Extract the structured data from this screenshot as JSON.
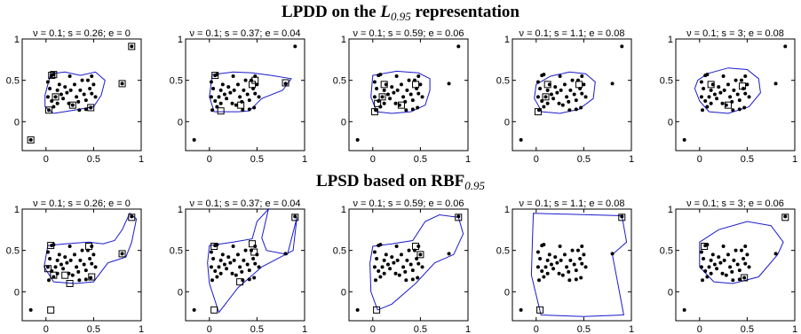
{
  "figure": {
    "rows": [
      {
        "title_prefix": "LPDD on the ",
        "title_math": "L",
        "title_sub": "0.95",
        "title_suffix": " representation"
      },
      {
        "title_prefix": "LPSD based on RBF",
        "title_math": "",
        "title_sub": "0.95",
        "title_suffix": ""
      }
    ]
  },
  "chart_data": [
    {
      "type": "scatter",
      "title": "ν = 0.1;  s = 0.26;  e = 0",
      "xlim": [
        -0.25,
        1
      ],
      "ylim": [
        -0.35,
        1
      ],
      "xticks": [
        {
          "v": 0,
          "l": "0"
        },
        {
          "v": 0.5,
          "l": "0.5"
        },
        {
          "v": 1,
          "l": "1"
        }
      ],
      "yticks": [
        {
          "v": 0,
          "l": "0"
        },
        {
          "v": 0.5,
          "l": "0.5"
        },
        {
          "v": 1,
          "l": "1"
        }
      ],
      "boundary": [
        [
          0.05,
          0.58
        ],
        [
          0.2,
          0.6
        ],
        [
          0.36,
          0.56
        ],
        [
          0.52,
          0.6
        ],
        [
          0.62,
          0.5
        ],
        [
          0.58,
          0.32
        ],
        [
          0.5,
          0.18
        ],
        [
          0.3,
          0.14
        ],
        [
          0.08,
          0.1
        ],
        [
          -0.01,
          0.18
        ],
        [
          -0.01,
          0.32
        ],
        [
          0.02,
          0.45
        ]
      ],
      "support_vectors": [
        [
          0.06,
          0.56
        ],
        [
          0.08,
          0.57
        ],
        [
          0.9,
          0.91
        ],
        [
          0.8,
          0.46
        ],
        [
          0.1,
          0.3
        ],
        [
          0.03,
          0.14
        ],
        [
          0.47,
          0.17
        ],
        [
          0.28,
          0.2
        ],
        [
          -0.16,
          -0.22
        ]
      ]
    },
    {
      "type": "scatter",
      "title": "ν = 0.1;  s = 0.37;  e = 0.04",
      "xlim": [
        -0.25,
        1
      ],
      "ylim": [
        -0.35,
        1
      ],
      "xticks": [
        {
          "v": 0,
          "l": "0"
        },
        {
          "v": 0.5,
          "l": "0.5"
        },
        {
          "v": 1,
          "l": "1"
        }
      ],
      "yticks": [
        {
          "v": 0,
          "l": "0"
        },
        {
          "v": 0.5,
          "l": "0.5"
        },
        {
          "v": 1,
          "l": "1"
        }
      ],
      "boundary": [
        [
          0.03,
          0.57
        ],
        [
          0.25,
          0.6
        ],
        [
          0.45,
          0.59
        ],
        [
          0.65,
          0.56
        ],
        [
          0.86,
          0.52
        ],
        [
          0.77,
          0.38
        ],
        [
          0.55,
          0.28
        ],
        [
          0.42,
          0.13
        ],
        [
          0.3,
          0.12
        ],
        [
          0.05,
          0.12
        ],
        [
          0.0,
          0.3
        ]
      ],
      "support_vectors": [
        [
          0.06,
          0.56
        ],
        [
          0.8,
          0.47
        ],
        [
          0.45,
          0.45
        ],
        [
          0.48,
          0.5
        ],
        [
          0.12,
          0.13
        ],
        [
          0.33,
          0.2
        ]
      ]
    },
    {
      "type": "scatter",
      "title": "ν = 0.1;  s = 0.59;  e = 0.06",
      "xlim": [
        -0.25,
        1
      ],
      "ylim": [
        -0.35,
        1
      ],
      "xticks": [
        {
          "v": 0,
          "l": "0"
        },
        {
          "v": 0.5,
          "l": "0.5"
        },
        {
          "v": 1,
          "l": "1"
        }
      ],
      "yticks": [
        {
          "v": 0,
          "l": "0"
        },
        {
          "v": 0.5,
          "l": "0.5"
        },
        {
          "v": 1,
          "l": "1"
        }
      ],
      "boundary": [
        [
          0.0,
          0.56
        ],
        [
          0.25,
          0.61
        ],
        [
          0.48,
          0.59
        ],
        [
          0.6,
          0.52
        ],
        [
          0.6,
          0.38
        ],
        [
          0.55,
          0.2
        ],
        [
          0.4,
          0.12
        ],
        [
          0.2,
          0.1
        ],
        [
          0.04,
          0.12
        ],
        [
          -0.02,
          0.3
        ]
      ],
      "support_vectors": [
        [
          0.12,
          0.45
        ],
        [
          0.45,
          0.45
        ],
        [
          0.1,
          0.3
        ],
        [
          0.05,
          0.22
        ],
        [
          0.02,
          0.12
        ],
        [
          0.3,
          0.2
        ]
      ]
    },
    {
      "type": "scatter",
      "title": "ν = 0.1;  s = 1.1;  e = 0.08",
      "xlim": [
        -0.25,
        1
      ],
      "ylim": [
        -0.35,
        1
      ],
      "xticks": [
        {
          "v": 0,
          "l": "0"
        },
        {
          "v": 0.5,
          "l": "0.5"
        },
        {
          "v": 1,
          "l": "1"
        }
      ],
      "yticks": [
        {
          "v": 0,
          "l": "0"
        },
        {
          "v": 0.5,
          "l": "0.5"
        },
        {
          "v": 1,
          "l": "1"
        }
      ],
      "boundary": [
        [
          0.0,
          0.45
        ],
        [
          0.15,
          0.55
        ],
        [
          0.35,
          0.6
        ],
        [
          0.52,
          0.58
        ],
        [
          0.62,
          0.48
        ],
        [
          0.6,
          0.28
        ],
        [
          0.45,
          0.15
        ],
        [
          0.25,
          0.1
        ],
        [
          0.06,
          0.12
        ],
        [
          -0.02,
          0.28
        ]
      ],
      "support_vectors": [
        [
          0.12,
          0.45
        ],
        [
          0.45,
          0.45
        ],
        [
          0.1,
          0.3
        ],
        [
          0.02,
          0.12
        ]
      ]
    },
    {
      "type": "scatter",
      "title": "ν = 0.1;  s = 3;  e = 0.08",
      "xlim": [
        -0.25,
        1
      ],
      "ylim": [
        -0.35,
        1
      ],
      "xticks": [
        {
          "v": 0,
          "l": "0"
        },
        {
          "v": 0.5,
          "l": "0.5"
        },
        {
          "v": 1,
          "l": "1"
        }
      ],
      "yticks": [
        {
          "v": 0,
          "l": "0"
        },
        {
          "v": 0.5,
          "l": "0.5"
        },
        {
          "v": 1,
          "l": "1"
        }
      ],
      "boundary": [
        [
          -0.02,
          0.5
        ],
        [
          0.08,
          0.58
        ],
        [
          0.3,
          0.65
        ],
        [
          0.5,
          0.63
        ],
        [
          0.62,
          0.52
        ],
        [
          0.64,
          0.35
        ],
        [
          0.52,
          0.18
        ],
        [
          0.3,
          0.1
        ],
        [
          0.1,
          0.12
        ],
        [
          0.0,
          0.25
        ],
        [
          -0.05,
          0.4
        ]
      ],
      "support_vectors": [
        [
          0.12,
          0.45
        ],
        [
          0.45,
          0.43
        ],
        [
          0.3,
          0.2
        ]
      ]
    },
    {
      "type": "scatter",
      "title": "ν = 0.1;  s = 0.26;  e = 0",
      "xlim": [
        -0.25,
        1
      ],
      "ylim": [
        -0.35,
        1
      ],
      "xticks": [
        {
          "v": 0,
          "l": "0"
        },
        {
          "v": 0.5,
          "l": "0.5"
        },
        {
          "v": 1,
          "l": "1"
        }
      ],
      "yticks": [
        {
          "v": 0,
          "l": "0"
        },
        {
          "v": 0.5,
          "l": "0.5"
        },
        {
          "v": 1,
          "l": "1"
        }
      ],
      "boundary": [
        [
          0.02,
          0.56
        ],
        [
          0.2,
          0.58
        ],
        [
          0.45,
          0.6
        ],
        [
          0.6,
          0.58
        ],
        [
          0.72,
          0.62
        ],
        [
          0.8,
          0.75
        ],
        [
          0.88,
          0.95
        ],
        [
          0.95,
          0.88
        ],
        [
          0.9,
          0.6
        ],
        [
          0.84,
          0.42
        ],
        [
          0.65,
          0.35
        ],
        [
          0.5,
          0.12
        ],
        [
          0.3,
          0.1
        ],
        [
          0.08,
          0.12
        ],
        [
          -0.02,
          0.3
        ]
      ],
      "support_vectors": [
        [
          0.05,
          0.56
        ],
        [
          0.9,
          0.9
        ],
        [
          0.8,
          0.46
        ],
        [
          0.45,
          0.55
        ],
        [
          0.02,
          0.28
        ],
        [
          0.08,
          0.2
        ],
        [
          0.2,
          0.2
        ],
        [
          0.25,
          0.1
        ],
        [
          0.48,
          0.18
        ],
        [
          0.05,
          -0.22
        ]
      ]
    },
    {
      "type": "scatter",
      "title": "ν = 0.1;  s = 0.37;  e = 0.04",
      "xlim": [
        -0.25,
        1
      ],
      "ylim": [
        -0.35,
        1
      ],
      "xticks": [
        {
          "v": 0,
          "l": "0"
        },
        {
          "v": 0.5,
          "l": "0.5"
        },
        {
          "v": 1,
          "l": "1"
        }
      ],
      "yticks": [
        {
          "v": 0,
          "l": "0"
        },
        {
          "v": 0.5,
          "l": "0.5"
        },
        {
          "v": 1,
          "l": "1"
        }
      ],
      "boundary": [
        [
          0.0,
          0.56
        ],
        [
          0.25,
          0.6
        ],
        [
          0.45,
          0.64
        ],
        [
          0.5,
          0.85
        ],
        [
          0.62,
          1.0
        ],
        [
          0.55,
          0.65
        ],
        [
          0.6,
          0.5
        ],
        [
          0.82,
          0.45
        ],
        [
          0.92,
          0.9
        ],
        [
          0.88,
          0.5
        ],
        [
          0.55,
          0.3
        ],
        [
          0.3,
          0.05
        ],
        [
          0.1,
          -0.25
        ],
        [
          0.0,
          0.1
        ],
        [
          -0.02,
          0.35
        ]
      ],
      "support_vectors": [
        [
          0.05,
          0.55
        ],
        [
          0.45,
          0.58
        ],
        [
          0.47,
          0.48
        ],
        [
          0.9,
          0.9
        ],
        [
          0.32,
          0.12
        ],
        [
          0.05,
          -0.22
        ]
      ]
    },
    {
      "type": "scatter",
      "title": "ν = 0.1;  s = 0.59;  e = 0.06",
      "xlim": [
        -0.25,
        1
      ],
      "ylim": [
        -0.35,
        1
      ],
      "xticks": [
        {
          "v": 0,
          "l": "0"
        },
        {
          "v": 0.5,
          "l": "0.5"
        },
        {
          "v": 1,
          "l": "1"
        }
      ],
      "yticks": [
        {
          "v": 0,
          "l": "0"
        },
        {
          "v": 0.5,
          "l": "0.5"
        },
        {
          "v": 1,
          "l": "1"
        }
      ],
      "boundary": [
        [
          0.0,
          0.55
        ],
        [
          0.2,
          0.58
        ],
        [
          0.42,
          0.62
        ],
        [
          0.55,
          0.85
        ],
        [
          0.7,
          0.93
        ],
        [
          0.9,
          0.9
        ],
        [
          0.95,
          0.7
        ],
        [
          0.85,
          0.45
        ],
        [
          0.65,
          0.35
        ],
        [
          0.45,
          0.1
        ],
        [
          0.2,
          -0.15
        ],
        [
          0.05,
          -0.22
        ],
        [
          -0.02,
          0.0
        ],
        [
          -0.03,
          0.35
        ]
      ],
      "support_vectors": [
        [
          0.9,
          0.9
        ],
        [
          0.45,
          0.55
        ],
        [
          0.5,
          0.45
        ],
        [
          0.04,
          -0.22
        ]
      ]
    },
    {
      "type": "scatter",
      "title": "ν = 0.1;  s = 1.1;  e = 0.08",
      "xlim": [
        -0.25,
        1
      ],
      "ylim": [
        -0.35,
        1
      ],
      "xticks": [
        {
          "v": 0,
          "l": "0"
        },
        {
          "v": 0.5,
          "l": "0.5"
        },
        {
          "v": 1,
          "l": "1"
        }
      ],
      "yticks": [
        {
          "v": 0,
          "l": "0"
        },
        {
          "v": 0.5,
          "l": "0.5"
        },
        {
          "v": 1,
          "l": "1"
        }
      ],
      "boundary": [
        [
          -0.03,
          0.95
        ],
        [
          0.9,
          0.92
        ],
        [
          0.95,
          0.6
        ],
        [
          0.8,
          0.45
        ],
        [
          0.92,
          -0.28
        ],
        [
          0.5,
          -0.3
        ],
        [
          0.05,
          -0.28
        ],
        [
          -0.05,
          0.2
        ],
        [
          -0.04,
          0.6
        ]
      ],
      "support_vectors": [
        [
          0.9,
          0.9
        ],
        [
          0.04,
          -0.22
        ]
      ]
    },
    {
      "type": "scatter",
      "title": "ν = 0.1;  s = 3;  e = 0.06",
      "xlim": [
        -0.25,
        1
      ],
      "ylim": [
        -0.35,
        1
      ],
      "xticks": [
        {
          "v": 0,
          "l": "0"
        },
        {
          "v": 0.5,
          "l": "0.5"
        },
        {
          "v": 1,
          "l": "1"
        }
      ],
      "yticks": [
        {
          "v": 0,
          "l": "0"
        },
        {
          "v": 0.5,
          "l": "0.5"
        },
        {
          "v": 1,
          "l": "1"
        }
      ],
      "boundary": [
        [
          0.0,
          0.6
        ],
        [
          0.2,
          0.75
        ],
        [
          0.5,
          0.85
        ],
        [
          0.75,
          0.8
        ],
        [
          0.88,
          0.6
        ],
        [
          0.82,
          0.45
        ],
        [
          0.62,
          0.18
        ],
        [
          0.35,
          0.1
        ],
        [
          0.15,
          0.12
        ],
        [
          0.0,
          0.3
        ]
      ],
      "support_vectors": [
        [
          0.05,
          0.55
        ],
        [
          0.9,
          0.9
        ],
        [
          0.47,
          0.17
        ]
      ]
    }
  ],
  "data_points": [
    [
      0.06,
      0.56
    ],
    [
      0.08,
      0.57
    ],
    [
      0.02,
      0.48
    ],
    [
      0.04,
      0.4
    ],
    [
      0.02,
      0.3
    ],
    [
      0.06,
      0.25
    ],
    [
      0.03,
      0.14
    ],
    [
      0.08,
      0.18
    ],
    [
      0.1,
      0.3
    ],
    [
      0.12,
      0.38
    ],
    [
      0.14,
      0.45
    ],
    [
      0.16,
      0.33
    ],
    [
      0.18,
      0.28
    ],
    [
      0.2,
      0.42
    ],
    [
      0.22,
      0.35
    ],
    [
      0.24,
      0.22
    ],
    [
      0.26,
      0.38
    ],
    [
      0.28,
      0.2
    ],
    [
      0.3,
      0.45
    ],
    [
      0.32,
      0.3
    ],
    [
      0.34,
      0.24
    ],
    [
      0.36,
      0.38
    ],
    [
      0.38,
      0.5
    ],
    [
      0.4,
      0.33
    ],
    [
      0.42,
      0.26
    ],
    [
      0.44,
      0.5
    ],
    [
      0.46,
      0.4
    ],
    [
      0.48,
      0.55
    ],
    [
      0.48,
      0.34
    ],
    [
      0.47,
      0.17
    ],
    [
      0.5,
      0.45
    ],
    [
      0.52,
      0.3
    ],
    [
      0.35,
      0.14
    ],
    [
      0.25,
      0.55
    ],
    [
      0.12,
      0.22
    ],
    [
      0.42,
      0.15
    ],
    [
      0.9,
      0.91
    ],
    [
      0.8,
      0.46
    ],
    [
      -0.16,
      -0.22
    ]
  ],
  "style": {
    "boundary_color": "#1a1acc",
    "point_color": "#000000",
    "box_color": "#000000"
  }
}
